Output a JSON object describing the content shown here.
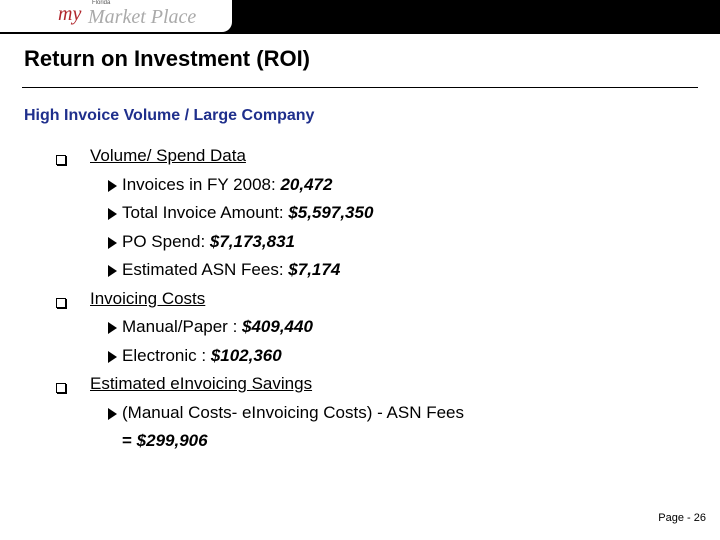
{
  "header": {
    "logo": {
      "prefix": "my",
      "state": "Florida",
      "name": "Market Place"
    }
  },
  "title": "Return on Investment (ROI)",
  "subtitle": "High Invoice Volume / Large Company",
  "sections": [
    {
      "heading": "Volume/ Spend Data",
      "items": [
        {
          "label": "Invoices in FY 2008: ",
          "value": "20,472"
        },
        {
          "label": "Total Invoice Amount: ",
          "value": "$5,597,350"
        },
        {
          "label": "PO Spend: ",
          "value": "$7,173,831"
        },
        {
          "label": "Estimated ASN Fees: ",
          "value": "$7,174"
        }
      ]
    },
    {
      "heading": "Invoicing Costs",
      "items": [
        {
          "label": "Manual/Paper : ",
          "value": "$409,440"
        },
        {
          "label": "Electronic : ",
          "value": "$102,360"
        }
      ]
    },
    {
      "heading": "Estimated eInvoicing Savings",
      "items": [
        {
          "label": "(Manual Costs- eInvoicing Costs) - ASN Fees",
          "result_sign": "=",
          "result": "$299,906"
        }
      ]
    }
  ],
  "footer": {
    "page": "Page - 26"
  }
}
